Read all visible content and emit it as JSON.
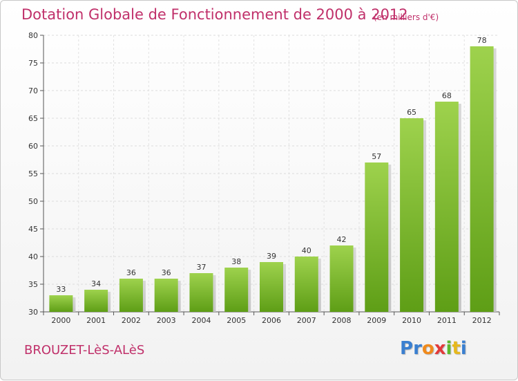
{
  "title": "Dotation Globale de Fonctionnement de 2000 à 2012",
  "subtitle": "(en milliers d'€)",
  "commune": "BROUZET-LèS-ALèS",
  "logo": {
    "letters": [
      "P",
      "r",
      "o",
      "x",
      "i",
      "t",
      "i"
    ],
    "colors": [
      "#3a7fd0",
      "#3a7fd0",
      "#f08a1c",
      "#e23a3a",
      "#5cb82e",
      "#e6b81e",
      "#3a7fd0"
    ]
  },
  "chart_data": {
    "type": "bar",
    "categories": [
      "2000",
      "2001",
      "2002",
      "2003",
      "2004",
      "2005",
      "2006",
      "2007",
      "2008",
      "2009",
      "2010",
      "2011",
      "2012"
    ],
    "values": [
      33,
      34,
      36,
      36,
      37,
      38,
      39,
      40,
      42,
      57,
      65,
      68,
      78
    ],
    "title": "Dotation Globale de Fonctionnement de 2000 à 2012",
    "subtitle": "(en milliers d'€)",
    "xlabel": "",
    "ylabel": "",
    "ylim": [
      30,
      80
    ],
    "yticks": [
      30,
      35,
      40,
      45,
      50,
      55,
      60,
      65,
      70,
      75,
      80
    ],
    "grid": true,
    "bar_color_top": "#9ed24d",
    "bar_color_bottom": "#5e9e16"
  }
}
